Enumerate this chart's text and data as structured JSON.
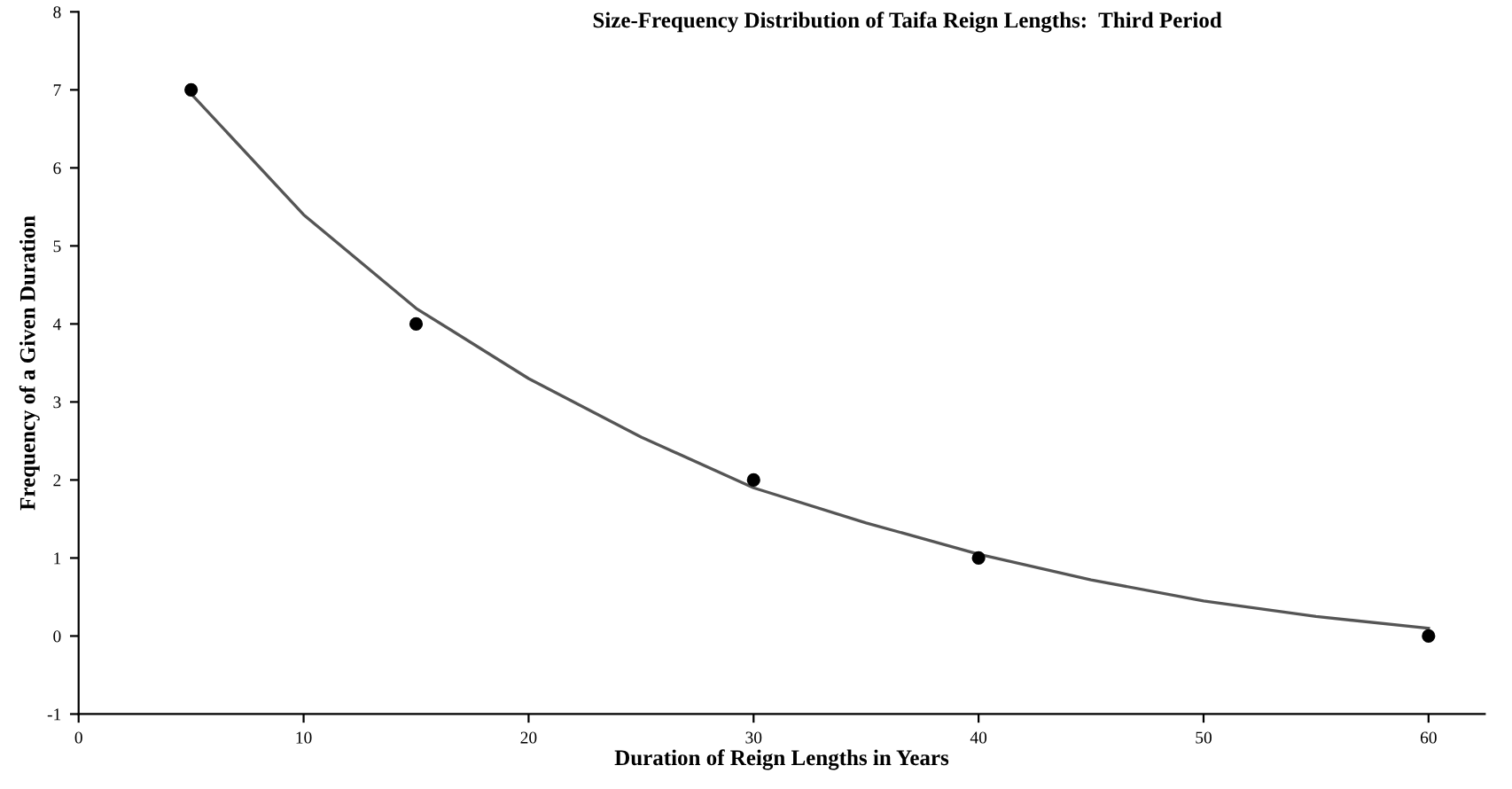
{
  "chart_data": {
    "type": "scatter",
    "title": "Size-Frequency Distribution of Taifa Reign Lengths:  Third Period",
    "xlabel": "Duration of Reign Lengths in Years",
    "ylabel": "Frequency of a Given Duration",
    "xlim": [
      0,
      62.5
    ],
    "ylim": [
      -1,
      8
    ],
    "xticks": [
      0,
      10,
      20,
      30,
      40,
      50,
      60
    ],
    "yticks": [
      -1,
      0,
      1,
      2,
      3,
      4,
      5,
      6,
      7,
      8
    ],
    "grid": false,
    "legend": false,
    "series": [
      {
        "color": "#000000",
        "marker": "circle",
        "x": [
          5,
          15,
          30,
          40,
          60
        ],
        "values": [
          7,
          4,
          2,
          1,
          0
        ]
      },
      {
        "type": "line",
        "color": "#555555",
        "line_style": "solid",
        "x": [
          5,
          10,
          15,
          20,
          25,
          30,
          35,
          40,
          45,
          50,
          55,
          60
        ],
        "values": [
          6.95,
          5.4,
          4.2,
          3.3,
          2.55,
          1.9,
          1.45,
          1.05,
          0.72,
          0.45,
          0.25,
          0.1
        ]
      }
    ]
  }
}
